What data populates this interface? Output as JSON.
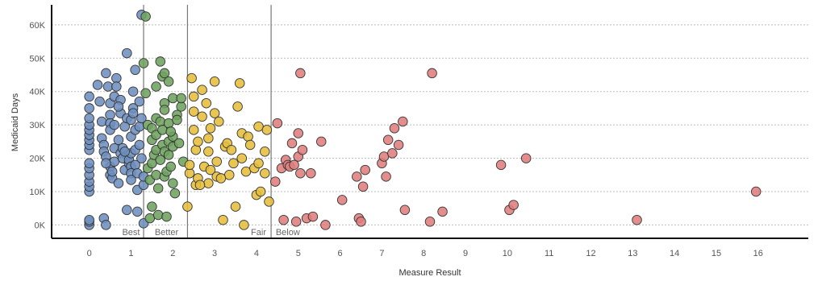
{
  "chart_data": {
    "type": "scatter",
    "xlabel": "Measure Result",
    "ylabel": "Medicaid Days",
    "xlim": [
      -0.9,
      17.2
    ],
    "ylim": [
      -4000,
      66000
    ],
    "x_ticks": [
      0,
      1,
      2,
      3,
      4,
      5,
      6,
      7,
      8,
      9,
      10,
      11,
      12,
      13,
      14,
      15,
      16
    ],
    "x_tick_labels": [
      "0",
      "1",
      "2",
      "3",
      "4",
      "5",
      "6",
      "7",
      "8",
      "9",
      "10",
      "11",
      "12",
      "13",
      "14",
      "15",
      "16"
    ],
    "y_ticks": [
      0,
      10000,
      20000,
      30000,
      40000,
      50000,
      60000
    ],
    "y_tick_labels": [
      "0K",
      "10K",
      "20K",
      "30K",
      "40K",
      "50K",
      "60K"
    ],
    "grid": "horizontal-dashed",
    "reference_lines": [
      1.3,
      2.35,
      4.35
    ],
    "band_labels": [
      {
        "text": "Best",
        "x": 1.0
      },
      {
        "text": "Better",
        "x": 1.85
      },
      {
        "text": "Fair",
        "x": 4.05
      },
      {
        "text": "Below",
        "x": 4.75
      }
    ],
    "series": [
      {
        "color": "#6e8fbf",
        "points": [
          [
            0,
            0
          ],
          [
            0,
            1000
          ],
          [
            0,
            1500
          ],
          [
            0,
            10000
          ],
          [
            0,
            11500
          ],
          [
            0,
            13000
          ],
          [
            0,
            15000
          ],
          [
            0,
            17000
          ],
          [
            0,
            18500
          ],
          [
            0,
            22500
          ],
          [
            0,
            24000
          ],
          [
            0,
            25500
          ],
          [
            0,
            27000
          ],
          [
            0,
            28500
          ],
          [
            0,
            30000
          ],
          [
            0,
            32000
          ],
          [
            0,
            35000
          ],
          [
            0,
            38500
          ],
          [
            0.2,
            42000
          ],
          [
            0.25,
            37000
          ],
          [
            0.3,
            31000
          ],
          [
            0.3,
            26000
          ],
          [
            0.35,
            24000
          ],
          [
            0.35,
            22000
          ],
          [
            0.35,
            2000
          ],
          [
            0.4,
            0
          ],
          [
            0.4,
            45500
          ],
          [
            0.4,
            20500
          ],
          [
            0.45,
            41500
          ],
          [
            0.5,
            36500
          ],
          [
            0.5,
            33000
          ],
          [
            0.5,
            30500
          ],
          [
            0.5,
            28500
          ],
          [
            0.5,
            17500
          ],
          [
            0.5,
            15000
          ],
          [
            0.55,
            14000
          ],
          [
            0.6,
            38500
          ],
          [
            0.6,
            30000
          ],
          [
            0.6,
            23000
          ],
          [
            0.6,
            19000
          ],
          [
            0.65,
            44000
          ],
          [
            0.65,
            41500
          ],
          [
            0.7,
            25500
          ],
          [
            0.7,
            12500
          ],
          [
            0.75,
            33500
          ],
          [
            0.75,
            37500
          ],
          [
            0.75,
            21500
          ],
          [
            0.8,
            23000
          ],
          [
            0.8,
            20000
          ],
          [
            0.85,
            29500
          ],
          [
            0.85,
            16500
          ],
          [
            0.9,
            51500
          ],
          [
            0.9,
            32000
          ],
          [
            0.9,
            4500
          ],
          [
            0.95,
            18500
          ],
          [
            0.95,
            19500
          ],
          [
            1.0,
            31500
          ],
          [
            1.0,
            26500
          ],
          [
            1.0,
            21500
          ],
          [
            1.0,
            17500
          ],
          [
            1.0,
            15500
          ],
          [
            1.0,
            13500
          ],
          [
            1.05,
            40000
          ],
          [
            1.05,
            35000
          ],
          [
            1.05,
            33500
          ],
          [
            1.1,
            46500
          ],
          [
            1.1,
            28500
          ],
          [
            1.1,
            22500
          ],
          [
            1.1,
            18000
          ],
          [
            1.15,
            10500
          ],
          [
            1.15,
            4000
          ],
          [
            1.15,
            15500
          ],
          [
            1.2,
            37000
          ],
          [
            1.2,
            24000
          ],
          [
            1.2,
            29500
          ],
          [
            1.25,
            63000
          ],
          [
            1.25,
            32000
          ],
          [
            1.25,
            20000
          ],
          [
            1.3,
            12000
          ],
          [
            1.3,
            14500
          ],
          [
            1.3,
            500
          ],
          [
            0.85,
            22000
          ],
          [
            0.55,
            16000
          ],
          [
            0.4,
            18500
          ],
          [
            0.7,
            35500
          ]
        ]
      },
      {
        "color": "#6ea35e",
        "points": [
          [
            1.35,
            62500
          ],
          [
            1.3,
            48500
          ],
          [
            1.35,
            39500
          ],
          [
            1.4,
            30000
          ],
          [
            1.4,
            17000
          ],
          [
            1.45,
            13500
          ],
          [
            1.45,
            2000
          ],
          [
            1.5,
            29000
          ],
          [
            1.5,
            25500
          ],
          [
            1.5,
            18500
          ],
          [
            1.5,
            5500
          ],
          [
            1.55,
            21000
          ],
          [
            1.6,
            41500
          ],
          [
            1.6,
            32000
          ],
          [
            1.6,
            27000
          ],
          [
            1.6,
            22500
          ],
          [
            1.6,
            15000
          ],
          [
            1.65,
            11000
          ],
          [
            1.7,
            49000
          ],
          [
            1.7,
            31000
          ],
          [
            1.7,
            19500
          ],
          [
            1.75,
            44500
          ],
          [
            1.75,
            28500
          ],
          [
            1.75,
            24000
          ],
          [
            1.8,
            45500
          ],
          [
            1.8,
            36500
          ],
          [
            1.8,
            34500
          ],
          [
            1.8,
            22000
          ],
          [
            1.8,
            14500
          ],
          [
            1.85,
            16000
          ],
          [
            1.9,
            43000
          ],
          [
            1.9,
            30500
          ],
          [
            1.9,
            25000
          ],
          [
            1.9,
            21000
          ],
          [
            1.95,
            17500
          ],
          [
            2.0,
            38000
          ],
          [
            2.0,
            26500
          ],
          [
            2.0,
            23500
          ],
          [
            2.0,
            12500
          ],
          [
            2.05,
            9500
          ],
          [
            2.1,
            33000
          ],
          [
            2.1,
            31500
          ],
          [
            2.15,
            24500
          ],
          [
            2.2,
            35500
          ],
          [
            2.2,
            38000
          ],
          [
            2.25,
            19000
          ],
          [
            1.65,
            3000
          ],
          [
            1.85,
            2500
          ],
          [
            1.95,
            28000
          ]
        ]
      },
      {
        "color": "#e6be3c",
        "points": [
          [
            2.35,
            5500
          ],
          [
            2.4,
            15500
          ],
          [
            2.4,
            18000
          ],
          [
            2.45,
            44000
          ],
          [
            2.5,
            38500
          ],
          [
            2.5,
            34000
          ],
          [
            2.5,
            28500
          ],
          [
            2.55,
            22500
          ],
          [
            2.55,
            12000
          ],
          [
            2.6,
            25000
          ],
          [
            2.6,
            14000
          ],
          [
            2.7,
            40500
          ],
          [
            2.7,
            32500
          ],
          [
            2.75,
            17500
          ],
          [
            2.8,
            36500
          ],
          [
            2.85,
            26000
          ],
          [
            2.85,
            22000
          ],
          [
            2.85,
            12500
          ],
          [
            2.9,
            29000
          ],
          [
            2.9,
            16500
          ],
          [
            3.0,
            43000
          ],
          [
            3.0,
            33500
          ],
          [
            3.05,
            19000
          ],
          [
            3.05,
            14500
          ],
          [
            3.1,
            31000
          ],
          [
            3.2,
            1500
          ],
          [
            3.25,
            23500
          ],
          [
            3.3,
            24500
          ],
          [
            3.35,
            15000
          ],
          [
            3.4,
            22500
          ],
          [
            3.45,
            18500
          ],
          [
            3.5,
            5500
          ],
          [
            3.55,
            35500
          ],
          [
            3.6,
            42500
          ],
          [
            3.65,
            27500
          ],
          [
            3.65,
            20000
          ],
          [
            3.7,
            0
          ],
          [
            3.75,
            16000
          ],
          [
            3.8,
            26500
          ],
          [
            3.85,
            24000
          ],
          [
            3.95,
            17000
          ],
          [
            4.0,
            9000
          ],
          [
            4.05,
            29500
          ],
          [
            4.05,
            18500
          ],
          [
            4.1,
            10000
          ],
          [
            4.2,
            22000
          ],
          [
            4.2,
            15500
          ],
          [
            4.3,
            7000
          ],
          [
            4.25,
            28500
          ],
          [
            2.65,
            12000
          ],
          [
            3.15,
            14000
          ]
        ]
      },
      {
        "color": "#e07d7d",
        "points": [
          [
            4.45,
            13000
          ],
          [
            4.5,
            30500
          ],
          [
            4.6,
            17000
          ],
          [
            4.65,
            1500
          ],
          [
            4.7,
            19500
          ],
          [
            4.75,
            18000
          ],
          [
            4.8,
            17500
          ],
          [
            4.85,
            24500
          ],
          [
            4.9,
            18000
          ],
          [
            4.95,
            1000
          ],
          [
            5.0,
            27500
          ],
          [
            5.0,
            20500
          ],
          [
            5.05,
            45500
          ],
          [
            5.05,
            15500
          ],
          [
            5.1,
            22500
          ],
          [
            5.2,
            2000
          ],
          [
            5.3,
            15500
          ],
          [
            5.35,
            2500
          ],
          [
            5.55,
            25000
          ],
          [
            5.65,
            0
          ],
          [
            6.05,
            7500
          ],
          [
            6.4,
            14500
          ],
          [
            6.45,
            2000
          ],
          [
            6.5,
            1000
          ],
          [
            6.55,
            11500
          ],
          [
            6.6,
            16500
          ],
          [
            7.0,
            18500
          ],
          [
            7.05,
            20500
          ],
          [
            7.1,
            14500
          ],
          [
            7.15,
            25500
          ],
          [
            7.25,
            21500
          ],
          [
            7.3,
            29000
          ],
          [
            7.4,
            24000
          ],
          [
            7.5,
            31000
          ],
          [
            7.55,
            4500
          ],
          [
            8.15,
            1000
          ],
          [
            8.2,
            45500
          ],
          [
            8.45,
            4000
          ],
          [
            9.85,
            18000
          ],
          [
            10.05,
            4500
          ],
          [
            10.15,
            6000
          ],
          [
            10.45,
            20000
          ],
          [
            13.1,
            1500
          ],
          [
            15.95,
            10000
          ]
        ]
      }
    ]
  }
}
